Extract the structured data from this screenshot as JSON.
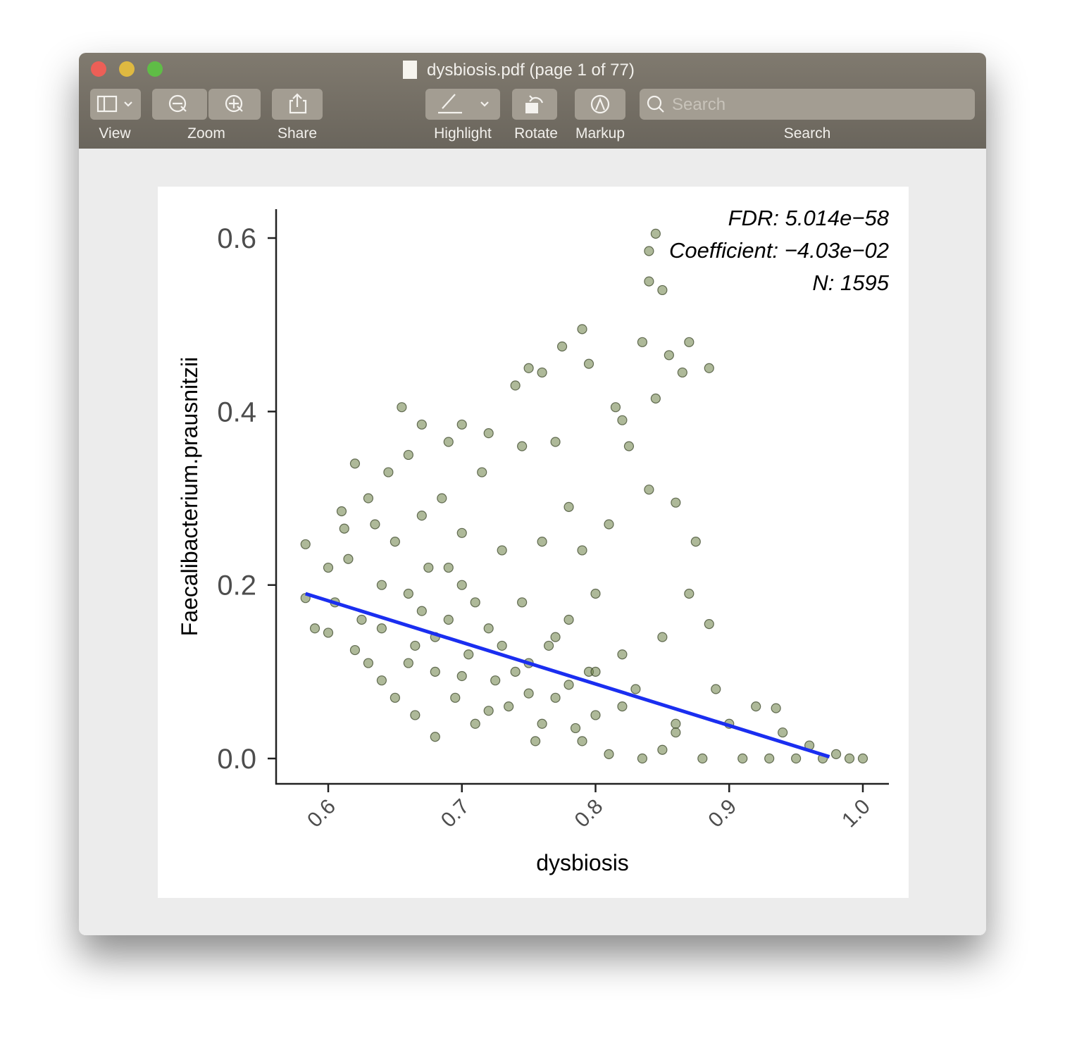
{
  "window": {
    "title": "dysbiosis.pdf (page 1 of 77)",
    "toolbar": {
      "labels": [
        "View",
        "Zoom",
        "Share",
        "Highlight",
        "Rotate",
        "Markup",
        "Search"
      ],
      "search_placeholder": "Search"
    }
  },
  "chart_data": {
    "type": "scatter",
    "x_label": "dysbiosis",
    "y_label": "Faecalibacterium.prausnitzii",
    "annotations": [
      "FDR: 5.014e−58",
      "Coefficient: −4.03e−02",
      "N: 1595"
    ],
    "color": "#6b7f45",
    "x": [
      0.583,
      0.583,
      0.59,
      0.6,
      0.6,
      0.605,
      0.61,
      0.612,
      0.615,
      0.62,
      0.62,
      0.625,
      0.63,
      0.63,
      0.635,
      0.64,
      0.64,
      0.645,
      0.65,
      0.65,
      0.655,
      0.66,
      0.66,
      0.665,
      0.665,
      0.67,
      0.67,
      0.675,
      0.68,
      0.68,
      0.685,
      0.69,
      0.69,
      0.695,
      0.7,
      0.7,
      0.7,
      0.705,
      0.71,
      0.715,
      0.72,
      0.72,
      0.725,
      0.73,
      0.735,
      0.74,
      0.745,
      0.745,
      0.75,
      0.75,
      0.755,
      0.76,
      0.76,
      0.765,
      0.77,
      0.77,
      0.775,
      0.78,
      0.78,
      0.785,
      0.79,
      0.79,
      0.795,
      0.795,
      0.8,
      0.8,
      0.81,
      0.81,
      0.815,
      0.82,
      0.82,
      0.825,
      0.83,
      0.835,
      0.835,
      0.84,
      0.84,
      0.845,
      0.845,
      0.85,
      0.85,
      0.855,
      0.86,
      0.86,
      0.84,
      0.865,
      0.87,
      0.87,
      0.875,
      0.88,
      0.885,
      0.885,
      0.89,
      0.9,
      0.91,
      0.92,
      0.93,
      0.935,
      0.94,
      0.95,
      0.96,
      0.97,
      0.98,
      0.99,
      1.0,
      0.75,
      0.72,
      0.7,
      0.68,
      0.66,
      0.74,
      0.78,
      0.8,
      0.82,
      0.76,
      0.64,
      0.67,
      0.69,
      0.71,
      0.73,
      0.77,
      0.79,
      0.85,
      0.86
    ],
    "y": [
      0.247,
      0.185,
      0.15,
      0.22,
      0.145,
      0.18,
      0.285,
      0.265,
      0.23,
      0.34,
      0.125,
      0.16,
      0.3,
      0.11,
      0.27,
      0.2,
      0.09,
      0.33,
      0.25,
      0.07,
      0.405,
      0.35,
      0.19,
      0.13,
      0.05,
      0.385,
      0.28,
      0.22,
      0.1,
      0.025,
      0.3,
      0.365,
      0.16,
      0.07,
      0.385,
      0.26,
      0.2,
      0.12,
      0.04,
      0.33,
      0.375,
      0.15,
      0.09,
      0.24,
      0.06,
      0.43,
      0.36,
      0.18,
      0.45,
      0.11,
      0.02,
      0.445,
      0.25,
      0.13,
      0.365,
      0.07,
      0.475,
      0.29,
      0.16,
      0.035,
      0.495,
      0.24,
      0.455,
      0.1,
      0.19,
      0.05,
      0.27,
      0.005,
      0.405,
      0.39,
      0.12,
      0.36,
      0.08,
      0.48,
      0,
      0.55,
      0.31,
      0.605,
      0.415,
      0.54,
      0.14,
      0.465,
      0.295,
      0.04,
      0.585,
      0.445,
      0.48,
      0.19,
      0.25,
      0,
      0.45,
      0.155,
      0.08,
      0.04,
      0,
      0.06,
      0,
      0.058,
      0.03,
      0,
      0.015,
      0,
      0.005,
      0,
      0,
      0.075,
      0.055,
      0.095,
      0.14,
      0.11,
      0.1,
      0.085,
      0.1,
      0.06,
      0.04,
      0.15,
      0.17,
      0.22,
      0.18,
      0.13,
      0.14,
      0.02,
      0.01,
      0.03
    ],
    "fit": {
      "x": [
        0.583,
        0.975
      ],
      "y": [
        0.19,
        0.002
      ],
      "color": "#1a2ef0"
    },
    "xlim": [
      0.561,
      1.0195
    ],
    "ylim": [
      -0.0292,
      0.6333
    ],
    "xticks": [
      0.6,
      0.7,
      0.8,
      0.9,
      {
        "value": 1,
        "label": "1.0"
      }
    ],
    "yticks": [
      {
        "value": 0,
        "label": "0.0"
      },
      0.2,
      0.4,
      0.6
    ]
  }
}
